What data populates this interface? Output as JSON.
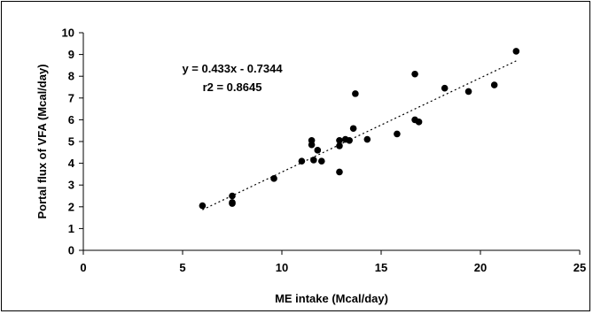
{
  "chart_data": {
    "type": "scatter",
    "title": "",
    "xlabel": "ME intake (Mcal/day)",
    "ylabel": "Portal flux of VFA (Mcal/day)",
    "xlim": [
      0,
      25
    ],
    "ylim": [
      0,
      10
    ],
    "xticks": [
      0,
      5,
      10,
      15,
      20,
      25
    ],
    "yticks": [
      0,
      1,
      2,
      3,
      4,
      5,
      6,
      7,
      8,
      9,
      10
    ],
    "grid": false,
    "legend": "none",
    "points": [
      {
        "x": 6.0,
        "y": 2.05
      },
      {
        "x": 7.5,
        "y": 2.15
      },
      {
        "x": 7.5,
        "y": 2.2
      },
      {
        "x": 7.5,
        "y": 2.5
      },
      {
        "x": 9.6,
        "y": 3.3
      },
      {
        "x": 11.0,
        "y": 4.1
      },
      {
        "x": 11.5,
        "y": 4.85
      },
      {
        "x": 11.5,
        "y": 5.05
      },
      {
        "x": 11.6,
        "y": 4.15
      },
      {
        "x": 11.8,
        "y": 4.6
      },
      {
        "x": 12.0,
        "y": 4.1
      },
      {
        "x": 12.9,
        "y": 3.6
      },
      {
        "x": 12.9,
        "y": 4.8
      },
      {
        "x": 12.9,
        "y": 5.05
      },
      {
        "x": 13.2,
        "y": 5.1
      },
      {
        "x": 13.4,
        "y": 5.05
      },
      {
        "x": 13.6,
        "y": 5.6
      },
      {
        "x": 13.7,
        "y": 7.2
      },
      {
        "x": 14.3,
        "y": 5.1
      },
      {
        "x": 15.8,
        "y": 5.35
      },
      {
        "x": 16.7,
        "y": 8.1
      },
      {
        "x": 16.7,
        "y": 6.0
      },
      {
        "x": 16.9,
        "y": 5.9
      },
      {
        "x": 18.2,
        "y": 7.45
      },
      {
        "x": 19.4,
        "y": 7.3
      },
      {
        "x": 20.7,
        "y": 7.6
      },
      {
        "x": 21.8,
        "y": 9.15
      }
    ],
    "trendline": {
      "slope": 0.433,
      "intercept": -0.7344,
      "x_range": [
        6.0,
        21.8
      ],
      "style": "dotted"
    },
    "annotations": [
      "y = 0.433x - 0.7344",
      "r2 = 0.8645"
    ],
    "colors": {
      "marker": "#000000",
      "axis": "#000000",
      "background": "#ffffff"
    }
  }
}
